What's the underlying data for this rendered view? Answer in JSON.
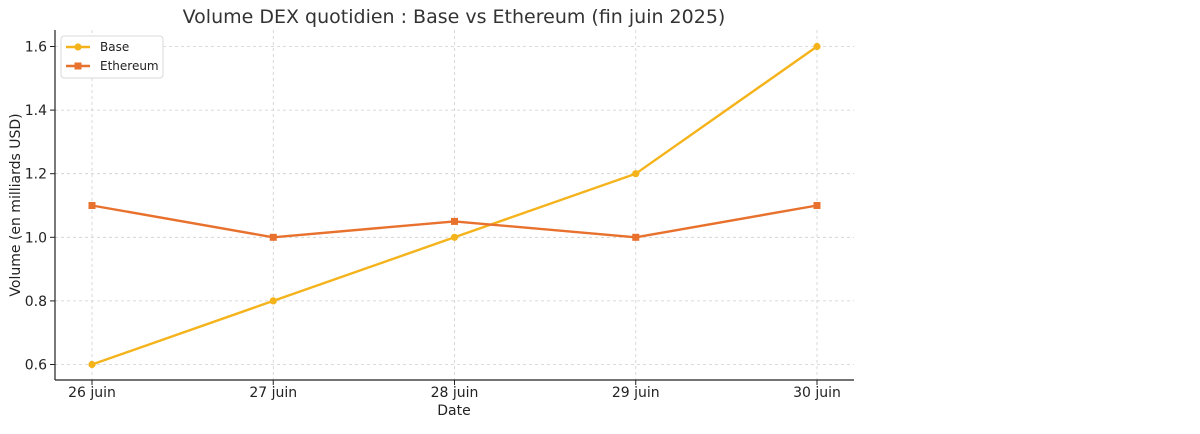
{
  "chart_data": {
    "type": "line",
    "title": "Volume DEX quotidien : Base vs Ethereum (fin juin 2025)",
    "xlabel": "Date",
    "ylabel": "Volume (en milliards USD)",
    "categories": [
      "26 juin",
      "27 juin",
      "28 juin",
      "29 juin",
      "30 juin"
    ],
    "ylim": [
      0.55,
      1.65
    ],
    "yticks": [
      0.6,
      0.8,
      1.0,
      1.2,
      1.4,
      1.6
    ],
    "ytick_labels": [
      "0.6",
      "0.8",
      "1.0",
      "1.2",
      "1.4",
      "1.6"
    ],
    "grid": true,
    "legend_position": "top-left",
    "series": [
      {
        "name": "Base",
        "values": [
          0.6,
          0.8,
          1.0,
          1.2,
          1.6
        ],
        "color": "#F5B31B",
        "marker": "circle"
      },
      {
        "name": "Ethereum",
        "values": [
          1.1,
          1.0,
          1.05,
          1.0,
          1.1
        ],
        "color": "#E8712E",
        "marker": "square"
      }
    ]
  }
}
